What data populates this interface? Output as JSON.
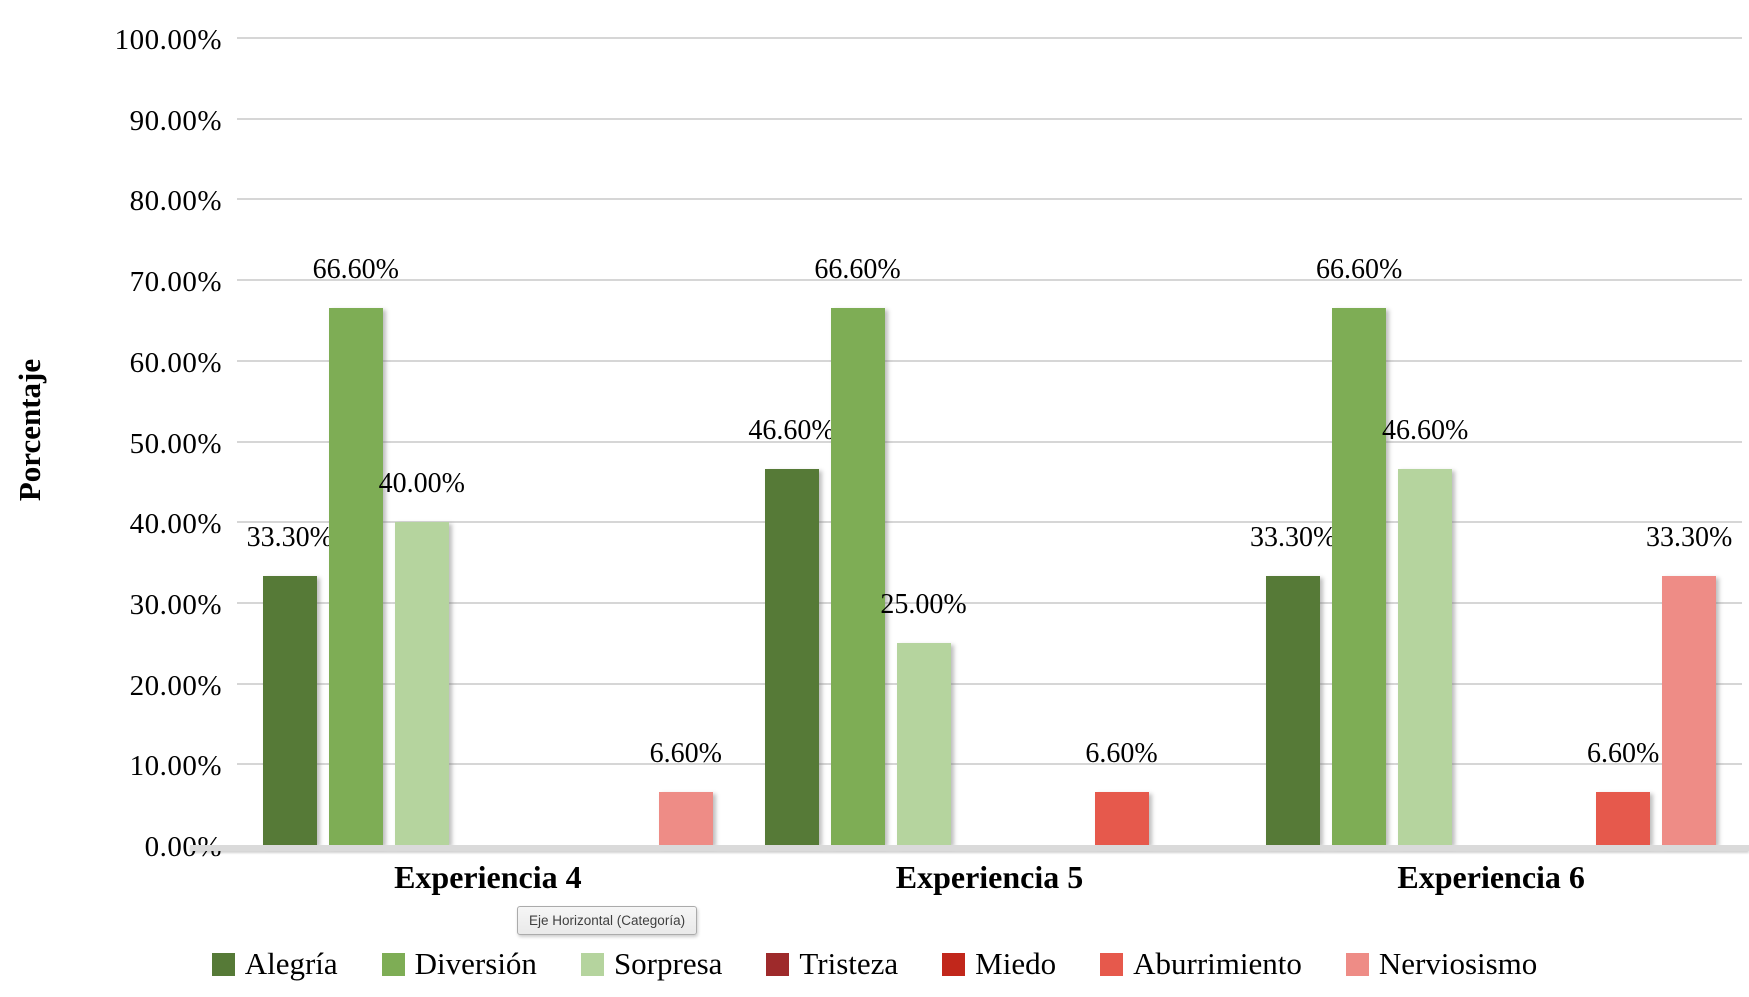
{
  "chart_data": {
    "type": "bar",
    "title": "",
    "xlabel": "",
    "ylabel": "Porcentaje",
    "ylim": [
      0,
      100
    ],
    "ytick_step": 10,
    "grid": true,
    "legend_position": "bottom",
    "y_axis_labels": [
      "100.00%",
      "90.00%",
      "80.00%",
      "70.00%",
      "60.00%",
      "50.00%",
      "40.00%",
      "30.00%",
      "20.00%",
      "10.00%",
      "0.00%"
    ],
    "categories": [
      "Experiencia 4",
      "Experiencia 5",
      "Experiencia 6"
    ],
    "series": [
      {
        "name": "Alegría",
        "color": "#567a37",
        "values": [
          33.3,
          46.6,
          33.3
        ],
        "data_labels": [
          "33.30%",
          "46.60%",
          "33.30%"
        ]
      },
      {
        "name": "Diversión",
        "color": "#7ead55",
        "values": [
          66.6,
          66.6,
          66.6
        ],
        "data_labels": [
          "66.60%",
          "66.60%",
          "66.60%"
        ]
      },
      {
        "name": "Sorpresa",
        "color": "#b5d49e",
        "values": [
          40.0,
          25.0,
          46.6
        ],
        "data_labels": [
          "40.00%",
          "25.00%",
          "46.60%"
        ]
      },
      {
        "name": "Tristeza",
        "color": "#9e2a2b",
        "values": [
          0,
          0,
          0
        ],
        "data_labels": [
          "",
          "",
          ""
        ]
      },
      {
        "name": "Miedo",
        "color": "#c1271b",
        "values": [
          0,
          0,
          0
        ],
        "data_labels": [
          "",
          "",
          ""
        ]
      },
      {
        "name": "Aburrimiento",
        "color": "#e6594c",
        "values": [
          0,
          6.6,
          6.6
        ],
        "data_labels": [
          "",
          "6.60%",
          "6.60%"
        ]
      },
      {
        "name": "Nerviosismo",
        "color": "#ee8c86",
        "values": [
          6.6,
          0,
          33.3
        ],
        "data_labels": [
          "6.60%",
          "",
          "33.30%"
        ]
      }
    ]
  },
  "tooltip": {
    "text": "Eje Horizontal (Categoría)"
  },
  "colors": {
    "gridline": "#d6d6d6",
    "axis_band": "#dadada",
    "text": "#000000"
  }
}
